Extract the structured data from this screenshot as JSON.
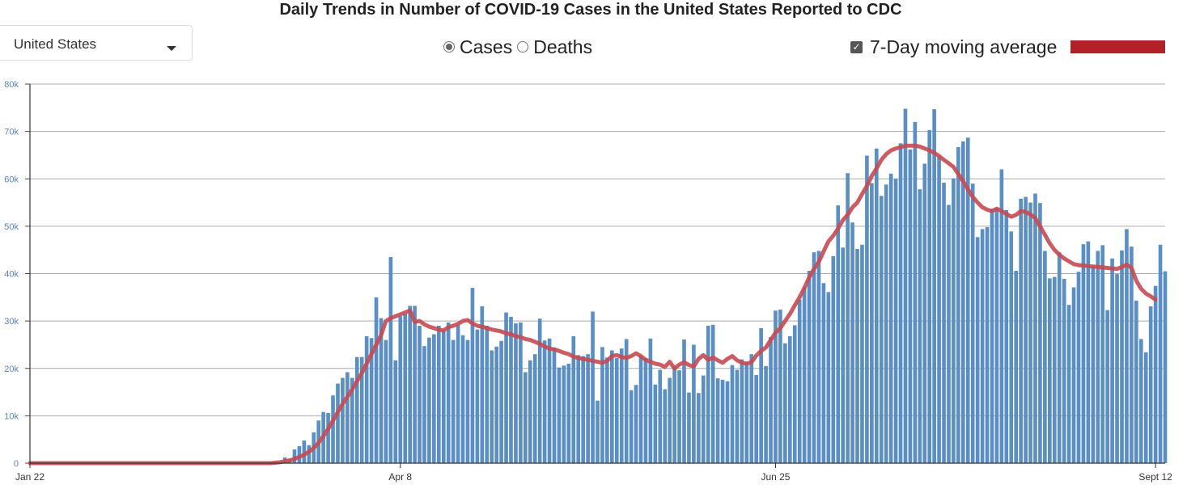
{
  "title": "Daily Trends in Number of COVID-19 Cases in the United States Reported to CDC",
  "region_select": {
    "value": "United States"
  },
  "toggles": {
    "cases_label": "Cases",
    "deaths_label": "Deaths",
    "selected": "cases",
    "moving_average_label": "7-Day moving average",
    "moving_average_checked": true,
    "check_glyph": "✓"
  },
  "colors": {
    "bar": "#5b8fc3",
    "moving_average": "#c64a52",
    "swatch": "#b22128",
    "grid": "#aaaaaa",
    "y_tick": "#5a82b8"
  },
  "chart_data": {
    "type": "bar",
    "x_start": "Jan 22",
    "x_end": "Sept 12",
    "xticks": [
      {
        "label": "Jan 22",
        "index": 0
      },
      {
        "label": "Apr 8",
        "index": 77
      },
      {
        "label": "Jun 25",
        "index": 155
      },
      {
        "label": "Sept 12",
        "index": 234
      }
    ],
    "ylim": [
      0,
      80000
    ],
    "yticks": [
      {
        "label": "0",
        "value": 0
      },
      {
        "label": "10k",
        "value": 10000
      },
      {
        "label": "20k",
        "value": 20000
      },
      {
        "label": "30k",
        "value": 30000
      },
      {
        "label": "40k",
        "value": 40000
      },
      {
        "label": "50k",
        "value": 50000
      },
      {
        "label": "60k",
        "value": 60000
      },
      {
        "label": "70k",
        "value": 70000
      },
      {
        "label": "80k",
        "value": 80000
      }
    ],
    "grid": true,
    "series": [
      {
        "name": "Cases",
        "type": "bar",
        "values": [
          0,
          0,
          0,
          0,
          0,
          0,
          0,
          0,
          0,
          0,
          0,
          0,
          0,
          0,
          0,
          0,
          0,
          0,
          0,
          0,
          0,
          0,
          0,
          0,
          0,
          0,
          0,
          0,
          0,
          0,
          0,
          0,
          0,
          0,
          0,
          0,
          0,
          0,
          0,
          0,
          0,
          0,
          0,
          0,
          0,
          0,
          0,
          0,
          0,
          0,
          0,
          0,
          0,
          1200,
          800,
          2900,
          3600,
          4800,
          3800,
          6500,
          9000,
          10800,
          10600,
          14300,
          16800,
          18000,
          19200,
          18000,
          22400,
          22400,
          26800,
          26400,
          35000,
          30600,
          26000,
          43500,
          21700,
          31000,
          31500,
          33200,
          33200,
          29000,
          24700,
          26500,
          27200,
          29000,
          28000,
          29700,
          26000,
          29100,
          27000,
          26000,
          37000,
          28200,
          33100,
          29000,
          23800,
          24600,
          25800,
          31800,
          30900,
          29500,
          29700,
          19200,
          21700,
          23000,
          30500,
          25900,
          26300,
          24400,
          20200,
          20600,
          21000,
          26800,
          22800,
          22600,
          23000,
          32000,
          13200,
          24500,
          22300,
          23800,
          22200,
          24200,
          26200,
          15400,
          16500,
          22700,
          22200,
          26300,
          16600,
          19700,
          15600,
          18000,
          20400,
          19600,
          26100,
          14900,
          25000,
          14800,
          18500,
          29000,
          29200,
          17900,
          17600,
          17300,
          20700,
          19700,
          21900,
          21400,
          23000,
          18600,
          28500,
          20500,
          26600,
          32200,
          32400,
          25300,
          26800,
          29100,
          34500,
          37100,
          40600,
          44500,
          44800,
          38000,
          36100,
          43700,
          54400,
          45500,
          61200,
          50800,
          45200,
          46100,
          64900,
          59100,
          66400,
          56400,
          58800,
          61100,
          60000,
          67500,
          74800,
          66200,
          72000,
          57800,
          63200,
          70300,
          74700,
          64700,
          59200,
          54500,
          60100,
          66700,
          67900,
          68700,
          59000,
          47700,
          49400,
          49800,
          53700,
          53900,
          62000,
          53400,
          48900,
          40600,
          55800,
          56200,
          55000,
          56900,
          54900,
          44800,
          39000,
          39300,
          44500,
          38900,
          33400,
          37100,
          40400,
          46200,
          46800,
          41600,
          44800,
          46000,
          32300,
          43200,
          39900,
          44900,
          49400,
          45700,
          34300,
          26200,
          23400,
          33100,
          37400,
          46100,
          40500
        ]
      },
      {
        "name": "7-Day moving average",
        "type": "line",
        "values": [
          0,
          0,
          0,
          0,
          0,
          0,
          0,
          0,
          0,
          0,
          0,
          0,
          0,
          0,
          0,
          0,
          0,
          0,
          0,
          0,
          0,
          0,
          0,
          0,
          0,
          0,
          0,
          0,
          0,
          0,
          0,
          0,
          0,
          0,
          0,
          0,
          0,
          0,
          0,
          0,
          0,
          0,
          0,
          0,
          0,
          0,
          0,
          0,
          0,
          0,
          0,
          100,
          200,
          400,
          600,
          900,
          1300,
          1800,
          2400,
          3200,
          4300,
          5700,
          7200,
          9000,
          10800,
          12500,
          14000,
          15600,
          17300,
          19000,
          21000,
          23000,
          25000,
          27000,
          30000,
          30600,
          31000,
          31400,
          31800,
          32200,
          29800,
          30000,
          29300,
          28800,
          28500,
          28200,
          28000,
          28700,
          29000,
          29400,
          30000,
          30200,
          29500,
          29000,
          28800,
          28500,
          28200,
          28000,
          27800,
          27400,
          27200,
          26800,
          26600,
          26200,
          26000,
          25600,
          25200,
          24600,
          24200,
          24000,
          23700,
          23300,
          23000,
          22500,
          22200,
          22000,
          21800,
          21600,
          21400,
          21200,
          21600,
          22600,
          22800,
          22400,
          22200,
          22600,
          23200,
          22600,
          21800,
          21400,
          21000,
          20800,
          20300,
          21400,
          20000,
          20800,
          21300,
          20700,
          20400,
          22000,
          22800,
          21800,
          22300,
          21700,
          21200,
          22000,
          22600,
          21700,
          21200,
          21000,
          21300,
          22700,
          23700,
          24400,
          26000,
          27500,
          28500,
          30000,
          31500,
          33300,
          35000,
          37000,
          39200,
          41000,
          42500,
          44700,
          46800,
          48000,
          49500,
          51300,
          52400,
          54000,
          55000,
          56800,
          58500,
          60600,
          62200,
          64000,
          65200,
          66000,
          66400,
          66700,
          67000,
          67000,
          67000,
          66800,
          66400,
          66000,
          65500,
          64800,
          64000,
          63300,
          62500,
          61000,
          59500,
          57800,
          56200,
          55000,
          54000,
          53500,
          53200,
          53700,
          53200,
          52600,
          52000,
          52400,
          53200,
          53000,
          52500,
          51700,
          50000,
          48200,
          46400,
          45000,
          44000,
          43200,
          42600,
          42000,
          41800,
          41700,
          41600,
          41500,
          41400,
          41300,
          41200,
          41100,
          41000,
          41400,
          41900,
          41200,
          38500,
          36800,
          35800,
          35200,
          34500
        ]
      }
    ]
  }
}
